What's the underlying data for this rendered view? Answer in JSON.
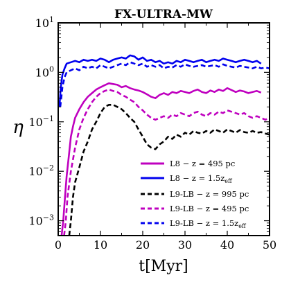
{
  "chart_data": {
    "type": "line",
    "title": "FX-ULTRA-MW",
    "xlabel": "t[Myr]",
    "ylabel": "η",
    "xlim": [
      0,
      50
    ],
    "ylim_log10": [
      -3.3,
      1
    ],
    "y_scale": "log",
    "x_ticks": [
      {
        "value": 0,
        "label": "0"
      },
      {
        "value": 10,
        "label": "10"
      },
      {
        "value": 20,
        "label": "20"
      },
      {
        "value": 30,
        "label": "30"
      },
      {
        "value": 40,
        "label": "40"
      },
      {
        "value": 50,
        "label": "50"
      }
    ],
    "y_ticks": [
      {
        "exp": 1,
        "base": "10",
        "sup": "1"
      },
      {
        "exp": 0,
        "base": "10",
        "sup": "0"
      },
      {
        "exp": -1,
        "base": "10",
        "sup": "−1"
      },
      {
        "exp": -2,
        "base": "10",
        "sup": "−2"
      },
      {
        "exp": -3,
        "base": "10",
        "sup": "−3"
      }
    ],
    "grid": false,
    "legend_position": "bottom-right",
    "series": [
      {
        "name": "L8 − z = 495 pc",
        "color": "#bf00bf",
        "dash": "solid",
        "points": [
          [
            0.8,
            0.0005
          ],
          [
            1.2,
            0.001
          ],
          [
            1.6,
            0.003
          ],
          [
            2,
            0.008
          ],
          [
            2.5,
            0.02
          ],
          [
            3,
            0.05
          ],
          [
            3.5,
            0.08
          ],
          [
            4,
            0.12
          ],
          [
            5,
            0.18
          ],
          [
            6,
            0.25
          ],
          [
            7,
            0.32
          ],
          [
            8,
            0.38
          ],
          [
            9,
            0.45
          ],
          [
            10,
            0.5
          ],
          [
            11,
            0.55
          ],
          [
            12,
            0.6
          ],
          [
            13,
            0.58
          ],
          [
            14,
            0.56
          ],
          [
            15,
            0.5
          ],
          [
            16,
            0.53
          ],
          [
            17,
            0.48
          ],
          [
            18,
            0.45
          ],
          [
            19,
            0.43
          ],
          [
            20,
            0.4
          ],
          [
            21,
            0.36
          ],
          [
            22,
            0.32
          ],
          [
            23,
            0.3
          ],
          [
            24,
            0.35
          ],
          [
            25,
            0.38
          ],
          [
            26,
            0.35
          ],
          [
            27,
            0.4
          ],
          [
            28,
            0.38
          ],
          [
            29,
            0.42
          ],
          [
            30,
            0.4
          ],
          [
            31,
            0.38
          ],
          [
            32,
            0.42
          ],
          [
            33,
            0.45
          ],
          [
            34,
            0.4
          ],
          [
            35,
            0.38
          ],
          [
            36,
            0.43
          ],
          [
            37,
            0.4
          ],
          [
            38,
            0.45
          ],
          [
            39,
            0.42
          ],
          [
            40,
            0.48
          ],
          [
            41,
            0.44
          ],
          [
            42,
            0.4
          ],
          [
            43,
            0.43
          ],
          [
            44,
            0.41
          ],
          [
            45,
            0.38
          ],
          [
            46,
            0.4
          ],
          [
            47,
            0.42
          ],
          [
            48,
            0.39
          ]
        ]
      },
      {
        "name": "L8 − z = 1.5z",
        "name_sub": "eff",
        "color": "#0000ee",
        "dash": "solid",
        "points": [
          [
            0.3,
            0.2
          ],
          [
            0.6,
            0.5
          ],
          [
            1,
            0.9
          ],
          [
            1.5,
            1.2
          ],
          [
            2,
            1.5
          ],
          [
            3,
            1.6
          ],
          [
            4,
            1.7
          ],
          [
            5,
            1.6
          ],
          [
            6,
            1.8
          ],
          [
            7,
            1.7
          ],
          [
            8,
            1.8
          ],
          [
            9,
            1.7
          ],
          [
            10,
            1.9
          ],
          [
            11,
            1.8
          ],
          [
            12,
            1.6
          ],
          [
            13,
            1.8
          ],
          [
            14,
            1.9
          ],
          [
            15,
            2.0
          ],
          [
            16,
            1.9
          ],
          [
            17,
            2.2
          ],
          [
            18,
            2.1
          ],
          [
            19,
            1.8
          ],
          [
            20,
            2.0
          ],
          [
            21,
            1.7
          ],
          [
            22,
            1.8
          ],
          [
            23,
            1.6
          ],
          [
            24,
            1.7
          ],
          [
            25,
            1.5
          ],
          [
            26,
            1.6
          ],
          [
            27,
            1.5
          ],
          [
            28,
            1.7
          ],
          [
            29,
            1.6
          ],
          [
            30,
            1.8
          ],
          [
            31,
            1.7
          ],
          [
            32,
            1.6
          ],
          [
            33,
            1.7
          ],
          [
            34,
            1.8
          ],
          [
            35,
            1.6
          ],
          [
            36,
            1.7
          ],
          [
            37,
            1.8
          ],
          [
            38,
            1.7
          ],
          [
            39,
            1.9
          ],
          [
            40,
            1.8
          ],
          [
            41,
            1.7
          ],
          [
            42,
            1.6
          ],
          [
            43,
            1.7
          ],
          [
            44,
            1.8
          ],
          [
            45,
            1.7
          ],
          [
            46,
            1.6
          ],
          [
            47,
            1.7
          ],
          [
            48,
            1.5
          ]
        ]
      },
      {
        "name": "L9-LB − z = 995 pc",
        "color": "#000000",
        "dash": "dashed",
        "points": [
          [
            2.6,
            0.0005
          ],
          [
            3,
            0.001
          ],
          [
            3.5,
            0.003
          ],
          [
            4,
            0.006
          ],
          [
            5,
            0.012
          ],
          [
            6,
            0.025
          ],
          [
            7,
            0.04
          ],
          [
            8,
            0.07
          ],
          [
            9,
            0.1
          ],
          [
            10,
            0.15
          ],
          [
            11,
            0.2
          ],
          [
            12,
            0.22
          ],
          [
            13,
            0.22
          ],
          [
            14,
            0.2
          ],
          [
            15,
            0.18
          ],
          [
            16,
            0.15
          ],
          [
            17,
            0.12
          ],
          [
            18,
            0.1
          ],
          [
            19,
            0.07
          ],
          [
            20,
            0.05
          ],
          [
            21,
            0.035
          ],
          [
            22,
            0.03
          ],
          [
            23,
            0.028
          ],
          [
            24,
            0.035
          ],
          [
            25,
            0.04
          ],
          [
            26,
            0.05
          ],
          [
            27,
            0.045
          ],
          [
            28,
            0.055
          ],
          [
            29,
            0.05
          ],
          [
            30,
            0.06
          ],
          [
            31,
            0.055
          ],
          [
            32,
            0.065
          ],
          [
            33,
            0.06
          ],
          [
            34,
            0.058
          ],
          [
            35,
            0.065
          ],
          [
            36,
            0.06
          ],
          [
            37,
            0.07
          ],
          [
            38,
            0.065
          ],
          [
            39,
            0.06
          ],
          [
            40,
            0.07
          ],
          [
            41,
            0.065
          ],
          [
            42,
            0.06
          ],
          [
            43,
            0.068
          ],
          [
            44,
            0.062
          ],
          [
            45,
            0.06
          ],
          [
            46,
            0.065
          ],
          [
            47,
            0.06
          ],
          [
            48,
            0.062
          ],
          [
            49,
            0.058
          ],
          [
            50,
            0.055
          ]
        ]
      },
      {
        "name": "L9-LB − z = 495 pc",
        "color": "#bf00bf",
        "dash": "dashed",
        "points": [
          [
            1.4,
            0.0005
          ],
          [
            1.8,
            0.001
          ],
          [
            2.2,
            0.003
          ],
          [
            3,
            0.01
          ],
          [
            4,
            0.03
          ],
          [
            5,
            0.07
          ],
          [
            6,
            0.12
          ],
          [
            7,
            0.18
          ],
          [
            8,
            0.25
          ],
          [
            9,
            0.32
          ],
          [
            10,
            0.38
          ],
          [
            11,
            0.42
          ],
          [
            12,
            0.45
          ],
          [
            13,
            0.42
          ],
          [
            14,
            0.4
          ],
          [
            15,
            0.35
          ],
          [
            16,
            0.32
          ],
          [
            17,
            0.28
          ],
          [
            18,
            0.25
          ],
          [
            19,
            0.2
          ],
          [
            20,
            0.17
          ],
          [
            21,
            0.14
          ],
          [
            22,
            0.12
          ],
          [
            23,
            0.11
          ],
          [
            24,
            0.12
          ],
          [
            25,
            0.13
          ],
          [
            26,
            0.12
          ],
          [
            27,
            0.14
          ],
          [
            28,
            0.13
          ],
          [
            29,
            0.15
          ],
          [
            30,
            0.14
          ],
          [
            31,
            0.13
          ],
          [
            32,
            0.15
          ],
          [
            33,
            0.16
          ],
          [
            34,
            0.14
          ],
          [
            35,
            0.13
          ],
          [
            36,
            0.15
          ],
          [
            37,
            0.14
          ],
          [
            38,
            0.16
          ],
          [
            39,
            0.15
          ],
          [
            40,
            0.17
          ],
          [
            41,
            0.16
          ],
          [
            42,
            0.15
          ],
          [
            43,
            0.14
          ],
          [
            44,
            0.15
          ],
          [
            45,
            0.13
          ],
          [
            46,
            0.12
          ],
          [
            47,
            0.13
          ],
          [
            48,
            0.12
          ],
          [
            49,
            0.11
          ],
          [
            50,
            0.12
          ]
        ]
      },
      {
        "name": "L9-LB − z = 1.5z",
        "name_sub": "eff",
        "color": "#0000ee",
        "dash": "dashed",
        "points": [
          [
            0.5,
            0.2
          ],
          [
            1,
            0.5
          ],
          [
            1.5,
            0.8
          ],
          [
            2,
            1.0
          ],
          [
            3,
            1.1
          ],
          [
            4,
            1.2
          ],
          [
            5,
            1.1
          ],
          [
            6,
            1.3
          ],
          [
            7,
            1.2
          ],
          [
            8,
            1.3
          ],
          [
            9,
            1.2
          ],
          [
            10,
            1.4
          ],
          [
            11,
            1.3
          ],
          [
            12,
            1.2
          ],
          [
            13,
            1.3
          ],
          [
            14,
            1.4
          ],
          [
            15,
            1.5
          ],
          [
            16,
            1.4
          ],
          [
            17,
            1.6
          ],
          [
            18,
            1.5
          ],
          [
            19,
            1.4
          ],
          [
            20,
            1.5
          ],
          [
            21,
            1.3
          ],
          [
            22,
            1.4
          ],
          [
            23,
            1.3
          ],
          [
            24,
            1.4
          ],
          [
            25,
            1.2
          ],
          [
            26,
            1.3
          ],
          [
            27,
            1.25
          ],
          [
            28,
            1.4
          ],
          [
            29,
            1.3
          ],
          [
            30,
            1.45
          ],
          [
            31,
            1.35
          ],
          [
            32,
            1.3
          ],
          [
            33,
            1.35
          ],
          [
            34,
            1.4
          ],
          [
            35,
            1.3
          ],
          [
            36,
            1.35
          ],
          [
            37,
            1.4
          ],
          [
            38,
            1.3
          ],
          [
            39,
            1.45
          ],
          [
            40,
            1.35
          ],
          [
            41,
            1.3
          ],
          [
            42,
            1.25
          ],
          [
            43,
            1.35
          ],
          [
            44,
            1.3
          ],
          [
            45,
            1.25
          ],
          [
            46,
            1.2
          ],
          [
            47,
            1.3
          ],
          [
            48,
            1.2
          ],
          [
            49,
            1.25
          ],
          [
            50,
            1.2
          ]
        ]
      }
    ]
  }
}
